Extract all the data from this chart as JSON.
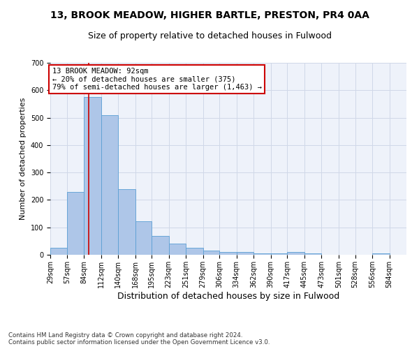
{
  "title": "13, BROOK MEADOW, HIGHER BARTLE, PRESTON, PR4 0AA",
  "subtitle": "Size of property relative to detached houses in Fulwood",
  "xlabel": "Distribution of detached houses by size in Fulwood",
  "ylabel": "Number of detached properties",
  "bin_labels": [
    "29sqm",
    "57sqm",
    "84sqm",
    "112sqm",
    "140sqm",
    "168sqm",
    "195sqm",
    "223sqm",
    "251sqm",
    "279sqm",
    "306sqm",
    "334sqm",
    "362sqm",
    "390sqm",
    "417sqm",
    "445sqm",
    "473sqm",
    "501sqm",
    "528sqm",
    "556sqm",
    "584sqm"
  ],
  "bin_edges": [
    29,
    57,
    84,
    112,
    140,
    168,
    195,
    223,
    251,
    279,
    306,
    334,
    362,
    390,
    417,
    445,
    473,
    501,
    528,
    556,
    584,
    612
  ],
  "bar_heights": [
    25,
    230,
    575,
    510,
    240,
    123,
    70,
    40,
    25,
    15,
    10,
    10,
    5,
    5,
    10,
    5,
    0,
    0,
    0,
    5,
    0
  ],
  "bar_color": "#aec6e8",
  "bar_edge_color": "#5a9fd4",
  "grid_color": "#d0d8e8",
  "background_color": "#eef2fa",
  "annotation_text": "13 BROOK MEADOW: 92sqm\n← 20% of detached houses are smaller (375)\n79% of semi-detached houses are larger (1,463) →",
  "annotation_box_color": "#ffffff",
  "annotation_border_color": "#cc0000",
  "property_size": 92,
  "redline_color": "#cc0000",
  "ylim": [
    0,
    700
  ],
  "yticks": [
    0,
    100,
    200,
    300,
    400,
    500,
    600,
    700
  ],
  "footnote": "Contains HM Land Registry data © Crown copyright and database right 2024.\nContains public sector information licensed under the Open Government Licence v3.0.",
  "title_fontsize": 10,
  "subtitle_fontsize": 9,
  "xlabel_fontsize": 9,
  "ylabel_fontsize": 8,
  "tick_fontsize": 7,
  "annotation_fontsize": 7.5
}
